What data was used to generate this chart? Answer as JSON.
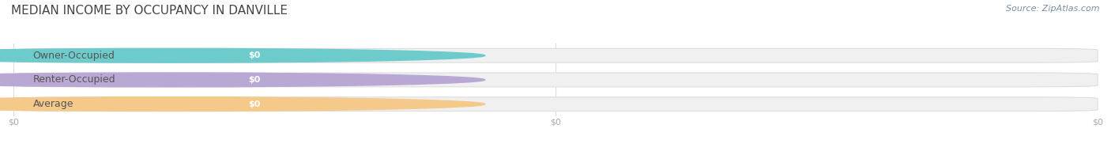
{
  "title": "MEDIAN INCOME BY OCCUPANCY IN DANVILLE",
  "source": "Source: ZipAtlas.com",
  "categories": [
    "Owner-Occupied",
    "Renter-Occupied",
    "Average"
  ],
  "values": [
    0,
    0,
    0
  ],
  "bar_colors": [
    "#6ecbcb",
    "#b9a8d4",
    "#f5c98a"
  ],
  "bar_bg_color": "#f0f0f0",
  "bar_edge_color": "#dddddd",
  "label_color": "#555555",
  "value_label_color": "#ffffff",
  "tick_label_color": "#aaaaaa",
  "title_color": "#444444",
  "source_color": "#7a8fa6",
  "background_color": "#ffffff",
  "bar_height": 0.58,
  "figsize": [
    14.06,
    1.96
  ],
  "dpi": 100,
  "label_fontsize": 9,
  "badge_fontsize": 8,
  "title_fontsize": 11,
  "source_fontsize": 8
}
